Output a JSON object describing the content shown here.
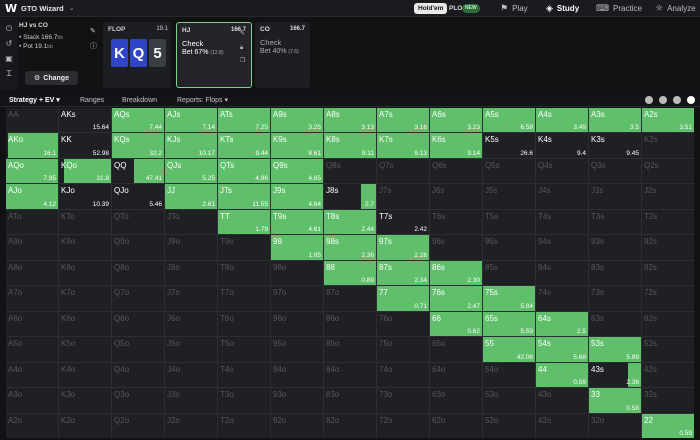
{
  "nav": {
    "app_name": "GTO Wizard",
    "holdem": "Hold'em",
    "plo": "PLO",
    "new_badge": "NEW",
    "items": [
      {
        "label": "Play",
        "icon": "play-icon"
      },
      {
        "label": "Study",
        "icon": "study-icon",
        "active": true
      },
      {
        "label": "Practice",
        "icon": "gamepad-icon"
      },
      {
        "label": "Analyze",
        "icon": "analyze-icon"
      }
    ]
  },
  "spot": {
    "title": "HJ vs CO",
    "stack_label": "• Stack 166.7",
    "stack_unit": "bb",
    "pot_label": "• Pot 19.1",
    "pot_unit": "bb",
    "change_label": "Change"
  },
  "flop": {
    "label": "FLOP",
    "pot": "19.1",
    "cards": [
      {
        "rank": "K",
        "suit": "spade",
        "color": "#2f44c8"
      },
      {
        "rank": "Q",
        "suit": "spade",
        "color": "#2f44c8"
      },
      {
        "rank": "5",
        "suit": "club",
        "color": "#3a3d44"
      }
    ]
  },
  "actions": [
    {
      "player": "HJ",
      "stack": "166.7",
      "line1": "Check",
      "line2": "Bet 67%",
      "line2_sub": "(12.8)",
      "selected": true
    },
    {
      "player": "CO",
      "stack": "166.7",
      "line1": "Check",
      "line2": "Bet 40%",
      "line2_sub": "(7.6)",
      "selected": false
    }
  ],
  "tabs": [
    {
      "label": "Strategy + EV",
      "active": true,
      "caret": true
    },
    {
      "label": "Ranges"
    },
    {
      "label": "Breakdown"
    },
    {
      "label": "Reports: Flops",
      "caret": true
    }
  ],
  "colors": {
    "accent": "#5fbf6a",
    "flop_spade": "#2f44c8"
  },
  "grid": {
    "rows": [
      [
        [
          "AA",
          "",
          0
        ],
        [
          "AKs",
          "15.64",
          0
        ],
        [
          "AQs",
          "7.44",
          1
        ],
        [
          "AJs",
          "7.14",
          1
        ],
        [
          "ATs",
          "7.25",
          1
        ],
        [
          "A9s",
          "3.25",
          1
        ],
        [
          "A8s",
          "3.13",
          1
        ],
        [
          "A7s",
          "3.16",
          1
        ],
        [
          "A6s",
          "3.23",
          1
        ],
        [
          "A5s",
          "6.58",
          1
        ],
        [
          "A4s",
          "3.49",
          1
        ],
        [
          "A3s",
          "3.5",
          1
        ],
        [
          "A2s",
          "3.51",
          1
        ]
      ],
      [
        [
          "AKo",
          "16.1",
          0.96
        ],
        [
          "KK",
          "52.98",
          0
        ],
        [
          "KQs",
          "32.2",
          1
        ],
        [
          "KJs",
          "10.17",
          1
        ],
        [
          "KTs",
          "9.44",
          1
        ],
        [
          "K9s",
          "8.61",
          1
        ],
        [
          "K8s",
          "9.11",
          1
        ],
        [
          "K7s",
          "9.13",
          1
        ],
        [
          "K6s",
          "9.14",
          1
        ],
        [
          "K5s",
          "26.6",
          0
        ],
        [
          "K4s",
          "9.4",
          0
        ],
        [
          "K3s",
          "9.45",
          0
        ],
        [
          "K2s",
          "",
          0
        ]
      ],
      [
        [
          "AQo",
          "7.95",
          1
        ],
        [
          "KQo",
          "31.8",
          0.9
        ],
        [
          "QQ",
          "47.41",
          0.58
        ],
        [
          "QJs",
          "5.25",
          1
        ],
        [
          "QTs",
          "4.96",
          1
        ],
        [
          "Q9s",
          "4.65",
          1
        ],
        [
          "Q8s",
          "",
          0
        ],
        [
          "Q7s",
          "",
          0
        ],
        [
          "Q6s",
          "",
          0
        ],
        [
          "Q5s",
          "",
          0
        ],
        [
          "Q4s",
          "",
          0
        ],
        [
          "Q3s",
          "",
          0
        ],
        [
          "Q2s",
          "",
          0
        ]
      ],
      [
        [
          "AJo",
          "4.12",
          1
        ],
        [
          "KJo",
          "10.39",
          0
        ],
        [
          "QJo",
          "5.46",
          0
        ],
        [
          "JJ",
          "2.61",
          1
        ],
        [
          "JTs",
          "11.55",
          1
        ],
        [
          "J9s",
          "4.64",
          1
        ],
        [
          "J8s",
          "2.7",
          0.28
        ],
        [
          "J7s",
          "",
          0
        ],
        [
          "J6s",
          "",
          0
        ],
        [
          "J5s",
          "",
          0
        ],
        [
          "J4s",
          "",
          0
        ],
        [
          "J3s",
          "",
          0
        ],
        [
          "J2s",
          "",
          0
        ]
      ],
      [
        [
          "ATo",
          "",
          0
        ],
        [
          "KTo",
          "",
          0
        ],
        [
          "QTo",
          "",
          0
        ],
        [
          "JTo",
          "",
          0
        ],
        [
          "TT",
          "1.79",
          1
        ],
        [
          "T9s",
          "4.61",
          1
        ],
        [
          "T8s",
          "2.44",
          1
        ],
        [
          "T7s",
          "2.42",
          0
        ],
        [
          "T6s",
          "",
          0
        ],
        [
          "T5s",
          "",
          0
        ],
        [
          "T4s",
          "",
          0
        ],
        [
          "T3s",
          "",
          0
        ],
        [
          "T2s",
          "",
          0
        ]
      ],
      [
        [
          "A9o",
          "",
          0
        ],
        [
          "K9o",
          "",
          0
        ],
        [
          "Q9o",
          "",
          0
        ],
        [
          "J9o",
          "",
          0
        ],
        [
          "T9o",
          "",
          0
        ],
        [
          "99",
          "1.05",
          1
        ],
        [
          "98s",
          "2.36",
          1
        ],
        [
          "97s",
          "2.28",
          1
        ],
        [
          "96s",
          "",
          0
        ],
        [
          "95s",
          "",
          0
        ],
        [
          "94s",
          "",
          0
        ],
        [
          "93s",
          "",
          0
        ],
        [
          "92s",
          "",
          0
        ]
      ],
      [
        [
          "A8o",
          "",
          0
        ],
        [
          "K8o",
          "",
          0
        ],
        [
          "Q8o",
          "",
          0
        ],
        [
          "J8o",
          "",
          0
        ],
        [
          "T8o",
          "",
          0
        ],
        [
          "98o",
          "",
          0
        ],
        [
          "88",
          "0.89",
          1
        ],
        [
          "87s",
          "2.34",
          1
        ],
        [
          "86s",
          "2.30",
          1
        ],
        [
          "85s",
          "",
          0
        ],
        [
          "84s",
          "",
          0
        ],
        [
          "83s",
          "",
          0
        ],
        [
          "82s",
          "",
          0
        ]
      ],
      [
        [
          "A7o",
          "",
          0
        ],
        [
          "K7o",
          "",
          0
        ],
        [
          "Q7o",
          "",
          0
        ],
        [
          "J7o",
          "",
          0
        ],
        [
          "T7o",
          "",
          0
        ],
        [
          "97o",
          "",
          0
        ],
        [
          "87o",
          "",
          0
        ],
        [
          "77",
          "0.71",
          1
        ],
        [
          "76s",
          "2.47",
          1
        ],
        [
          "75s",
          "5.84",
          1
        ],
        [
          "74s",
          "",
          0
        ],
        [
          "73s",
          "",
          0
        ],
        [
          "72s",
          "",
          0
        ]
      ],
      [
        [
          "A6o",
          "",
          0
        ],
        [
          "K6o",
          "",
          0
        ],
        [
          "Q6o",
          "",
          0
        ],
        [
          "J6o",
          "",
          0
        ],
        [
          "T6o",
          "",
          0
        ],
        [
          "96o",
          "",
          0
        ],
        [
          "86o",
          "",
          0
        ],
        [
          "76o",
          "",
          0
        ],
        [
          "66",
          "0.62",
          1
        ],
        [
          "65s",
          "5.59",
          1
        ],
        [
          "64s",
          "2.5",
          1
        ],
        [
          "63s",
          "",
          0
        ],
        [
          "62s",
          "",
          0
        ]
      ],
      [
        [
          "A5o",
          "",
          0
        ],
        [
          "K5o",
          "",
          0
        ],
        [
          "Q5o",
          "",
          0
        ],
        [
          "J5o",
          "",
          0
        ],
        [
          "T5o",
          "",
          0
        ],
        [
          "95o",
          "",
          0
        ],
        [
          "85o",
          "",
          0
        ],
        [
          "75o",
          "",
          0
        ],
        [
          "65o",
          "",
          0
        ],
        [
          "55",
          "42.06",
          1
        ],
        [
          "54s",
          "5.68",
          1
        ],
        [
          "53s",
          "5.89",
          1
        ],
        [
          "52s",
          "",
          0
        ]
      ],
      [
        [
          "A4o",
          "",
          0
        ],
        [
          "K4o",
          "",
          0
        ],
        [
          "Q4o",
          "",
          0
        ],
        [
          "J4o",
          "",
          0
        ],
        [
          "T4o",
          "",
          0
        ],
        [
          "94o",
          "",
          0
        ],
        [
          "84o",
          "",
          0
        ],
        [
          "74o",
          "",
          0
        ],
        [
          "64o",
          "",
          0
        ],
        [
          "54o",
          "",
          0
        ],
        [
          "44",
          "0.59",
          1
        ],
        [
          "43s",
          "2.36",
          0.25
        ],
        [
          "42s",
          "",
          0
        ]
      ],
      [
        [
          "A3o",
          "",
          0
        ],
        [
          "K3o",
          "",
          0
        ],
        [
          "Q3o",
          "",
          0
        ],
        [
          "J3o",
          "",
          0
        ],
        [
          "T3o",
          "",
          0
        ],
        [
          "93o",
          "",
          0
        ],
        [
          "83o",
          "",
          0
        ],
        [
          "73o",
          "",
          0
        ],
        [
          "63o",
          "",
          0
        ],
        [
          "53o",
          "",
          0
        ],
        [
          "43o",
          "",
          0
        ],
        [
          "33",
          "0.58",
          1
        ],
        [
          "32s",
          "",
          0
        ]
      ],
      [
        [
          "A2o",
          "",
          0
        ],
        [
          "K2o",
          "",
          0
        ],
        [
          "Q2o",
          "",
          0
        ],
        [
          "J2o",
          "",
          0
        ],
        [
          "T2o",
          "",
          0
        ],
        [
          "92o",
          "",
          0
        ],
        [
          "82o",
          "",
          0
        ],
        [
          "72o",
          "",
          0
        ],
        [
          "62o",
          "",
          0
        ],
        [
          "52o",
          "",
          0
        ],
        [
          "42o",
          "",
          0
        ],
        [
          "32o",
          "",
          0
        ],
        [
          "22",
          "0.59",
          1
        ]
      ]
    ]
  }
}
